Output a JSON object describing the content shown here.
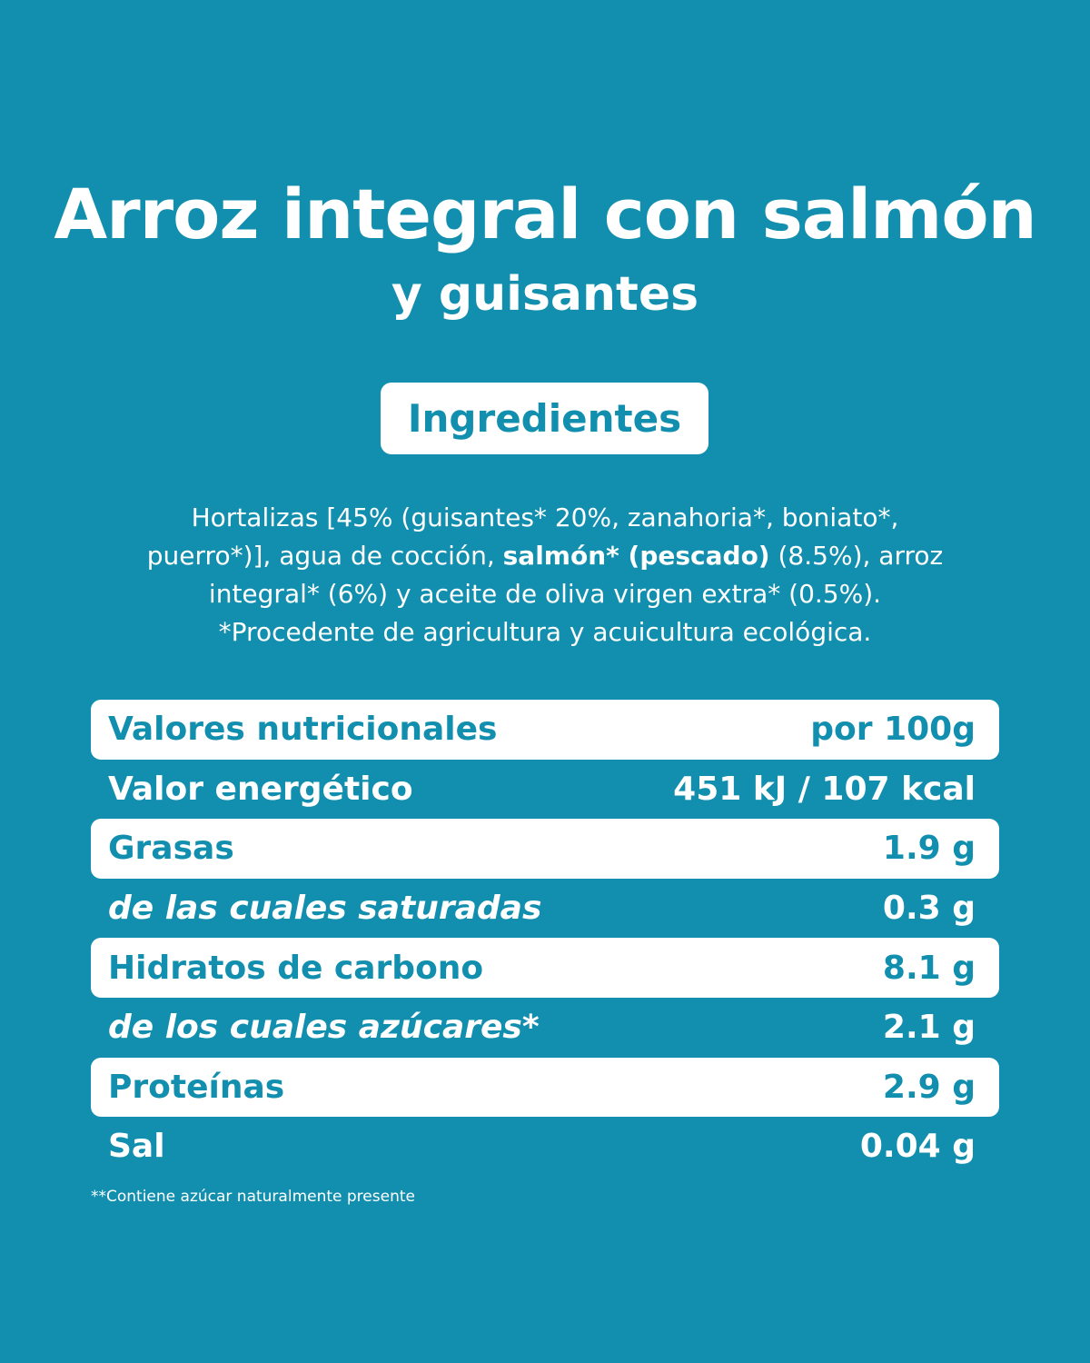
{
  "product": {
    "title": "Arroz integral con salmón",
    "subtitle": "y guisantes"
  },
  "ingredients_section": {
    "heading": "Ingredientes",
    "lines": [
      [
        {
          "text": "Hortalizas [45% (guisantes* 20%, zanahoria*, boniato*,",
          "bold": false
        }
      ],
      [
        {
          "text": "puerro*)], agua de cocción, ",
          "bold": false
        },
        {
          "text": "salmón* (pescado)",
          "bold": true
        },
        {
          "text": " (8.5%), arroz",
          "bold": false
        }
      ],
      [
        {
          "text": "integral* (6%) y aceite de oliva virgen extra* (0.5%).",
          "bold": false
        }
      ],
      [
        {
          "text": "*Procedente de agricultura y acuicultura ecológica.",
          "bold": false
        }
      ]
    ]
  },
  "nutrition": {
    "rows": [
      {
        "label": "Valores nutricionales",
        "value": "por 100g",
        "highlight": true,
        "italic": false
      },
      {
        "label": "Valor energético",
        "value": "451 kJ / 107 kcal",
        "highlight": false,
        "italic": false
      },
      {
        "label": "Grasas",
        "value": "1.9 g",
        "highlight": true,
        "italic": false
      },
      {
        "label": "de las cuales saturadas",
        "value": "0.3 g",
        "highlight": false,
        "italic": true
      },
      {
        "label": "Hidratos de carbono",
        "value": "8.1 g",
        "highlight": true,
        "italic": false
      },
      {
        "label": "de los cuales azúcares*",
        "value": "2.1 g",
        "highlight": false,
        "italic": true
      },
      {
        "label": "Proteínas",
        "value": "2.9 g",
        "highlight": true,
        "italic": false
      },
      {
        "label": "Sal",
        "value": "0.04 g",
        "highlight": false,
        "italic": false
      }
    ]
  },
  "footnote": "**Contiene azúcar naturalmente presente",
  "colors": {
    "background": "#128fae",
    "panel": "#ffffff"
  }
}
